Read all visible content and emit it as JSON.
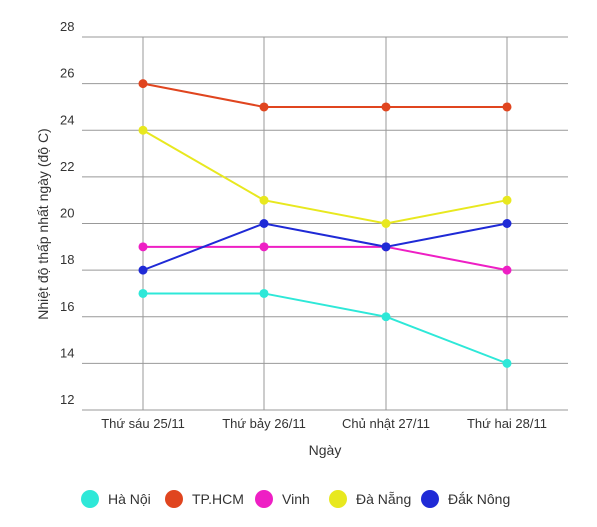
{
  "chart_data": {
    "type": "line",
    "title": "",
    "xlabel": "Ngày",
    "ylabel": "Nhiệt độ thấp nhất ngày (độ C)",
    "categories": [
      "Thứ sáu 25/11",
      "Thứ bảy 26/11",
      "Chủ nhật 27/11",
      "Thứ hai 28/11"
    ],
    "ylim": [
      12,
      28
    ],
    "yticks": [
      12,
      14,
      16,
      18,
      20,
      22,
      24,
      26,
      28
    ],
    "grid": true,
    "legend_position": "bottom",
    "series": [
      {
        "name": "Hà Nội",
        "color": "#2ee8d8",
        "values": [
          17,
          17,
          16,
          14
        ]
      },
      {
        "name": "TP.HCM",
        "color": "#e0451f",
        "values": [
          26,
          25,
          25,
          25
        ]
      },
      {
        "name": "Vinh",
        "color": "#ee1fc4",
        "values": [
          19,
          19,
          19,
          18
        ]
      },
      {
        "name": "Đà Nẵng",
        "color": "#e8e81f",
        "values": [
          24,
          21,
          20,
          21
        ]
      },
      {
        "name": "Đắk Nông",
        "color": "#1f2ad6",
        "values": [
          18,
          20,
          19,
          20
        ]
      }
    ]
  }
}
